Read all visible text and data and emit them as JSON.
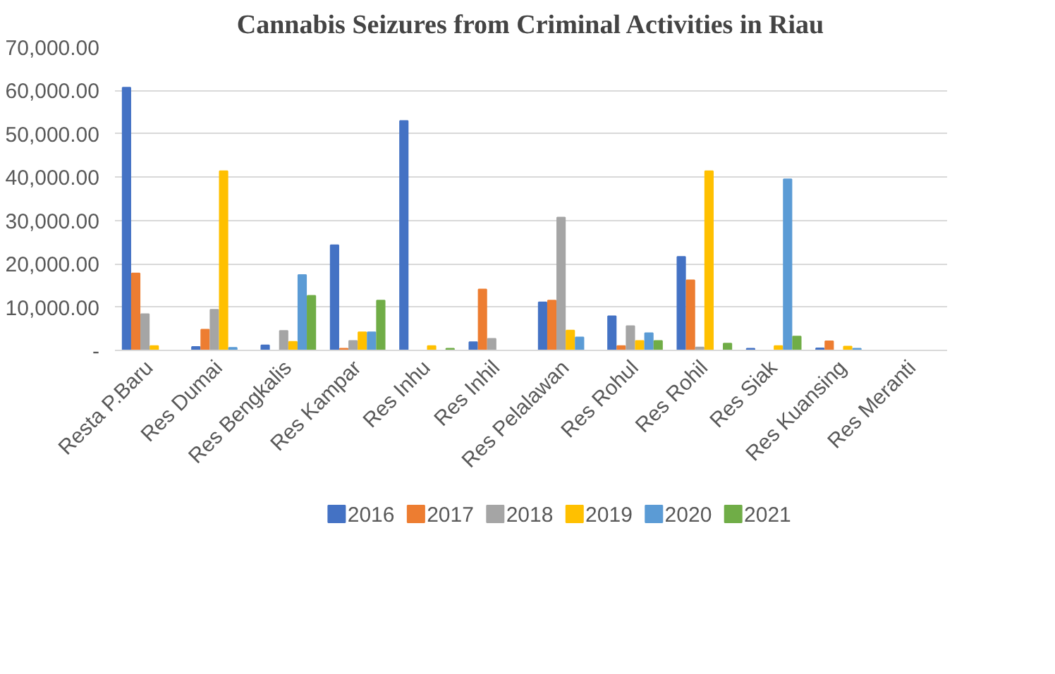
{
  "chart_data": {
    "type": "bar",
    "title": "Cannabis Seizures from Criminal Activities in Riau",
    "categories": [
      "Resta P.Baru",
      "Res Dumai",
      "Res Bengkalis",
      "Res Kampar",
      "Res Inhu",
      "Res Inhil",
      "Res Pelalawan",
      "Res Rohul",
      "Res Rohil",
      "Res Siak",
      "Res Kuansing",
      "Res Meranti"
    ],
    "series": [
      {
        "name": "2016",
        "color": "#4472c4",
        "values": [
          60700,
          800,
          1200,
          24300,
          53000,
          1900,
          11100,
          7900,
          21600,
          400,
          500,
          0
        ]
      },
      {
        "name": "2017",
        "color": "#ed7d31",
        "values": [
          17800,
          4800,
          0,
          400,
          0,
          14100,
          11500,
          1000,
          16200,
          0,
          2100,
          0
        ]
      },
      {
        "name": "2018",
        "color": "#a5a5a5",
        "values": [
          8400,
          9400,
          4500,
          2200,
          0,
          2700,
          30700,
          5600,
          700,
          0,
          0,
          0
        ]
      },
      {
        "name": "2019",
        "color": "#ffc000",
        "values": [
          1000,
          41400,
          2000,
          4200,
          1000,
          0,
          4600,
          2200,
          41400,
          1000,
          900,
          0
        ]
      },
      {
        "name": "2020",
        "color": "#5b9bd5",
        "values": [
          0,
          600,
          17400,
          4200,
          0,
          0,
          3000,
          4000,
          0,
          39500,
          400,
          0
        ]
      },
      {
        "name": "2021",
        "color": "#70ad47",
        "values": [
          0,
          0,
          12600,
          11500,
          400,
          0,
          0,
          2200,
          1600,
          3200,
          0,
          0
        ]
      }
    ],
    "ylim": [
      0,
      70000
    ],
    "yticks": [
      {
        "value": 0,
        "label": "-"
      },
      {
        "value": 10000,
        "label": "10,000.00"
      },
      {
        "value": 20000,
        "label": "20,000.00"
      },
      {
        "value": 30000,
        "label": "30,000.00"
      },
      {
        "value": 40000,
        "label": "40,000.00"
      },
      {
        "value": 50000,
        "label": "50,000.00"
      },
      {
        "value": 60000,
        "label": "60,000.00"
      },
      {
        "value": 70000,
        "label": "70,000.00"
      }
    ],
    "grid": "y",
    "legend": "bottom"
  }
}
